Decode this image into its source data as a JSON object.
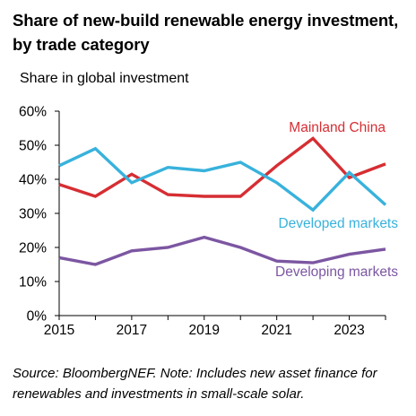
{
  "title": "Share of new-build renewable energy investment, by trade category",
  "source": "Source: BloombergNEF. Note: Includes new asset finance for renewables and investments in small-scale solar.",
  "colors": {
    "Mainland China": "#d62e33",
    "Developed markets": "#38b2dc",
    "Developing markets": "#7c56a2",
    "axis": "#000000"
  },
  "chart_data": {
    "type": "line",
    "title": "Share of new-build renewable energy investment, by trade category",
    "xlabel": "",
    "ylabel": "Share in global investment",
    "x": [
      2015,
      2016,
      2017,
      2018,
      2019,
      2020,
      2021,
      2022,
      2023,
      2024
    ],
    "x_ticks": [
      "2015",
      "2017",
      "2019",
      "2021",
      "2023"
    ],
    "y_ticks": [
      "0%",
      "10%",
      "20%",
      "30%",
      "40%",
      "50%",
      "60%"
    ],
    "ylim": [
      0,
      60
    ],
    "grid": false,
    "legend": "inline labels",
    "series": [
      {
        "name": "Mainland China",
        "values": [
          38.5,
          35,
          41.5,
          35.5,
          35,
          35,
          44,
          52,
          40.5,
          44.5
        ]
      },
      {
        "name": "Developed markets",
        "values": [
          44,
          49,
          39,
          43.5,
          42.5,
          45,
          39,
          31,
          42,
          32.5
        ]
      },
      {
        "name": "Developing markets",
        "values": [
          17,
          15,
          19,
          20,
          23,
          20,
          16,
          15.5,
          18,
          19.5
        ]
      }
    ]
  }
}
